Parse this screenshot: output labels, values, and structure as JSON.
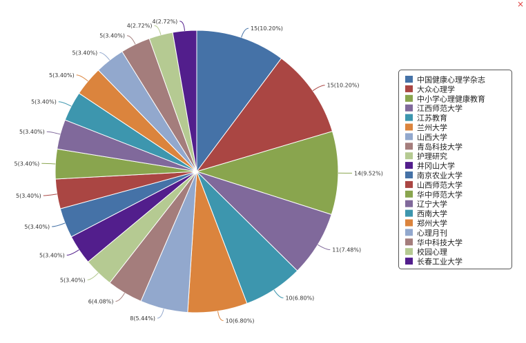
{
  "close_symbol": "×",
  "chart_data": {
    "type": "pie",
    "label_format": "{value}({percent})",
    "legend_position": "right",
    "slices": [
      {
        "name": "中国健康心理学杂志",
        "value": 15,
        "percent": "10.20%",
        "color": "#4572a7"
      },
      {
        "name": "大众心理学",
        "value": 15,
        "percent": "10.20%",
        "color": "#aa4643"
      },
      {
        "name": "中小学心理健康教育",
        "value": 14,
        "percent": "9.52%",
        "color": "#89a54e"
      },
      {
        "name": "江西师范大学",
        "value": 11,
        "percent": "7.48%",
        "color": "#80699b"
      },
      {
        "name": "江苏教育",
        "value": 10,
        "percent": "6.80%",
        "color": "#3d96ae"
      },
      {
        "name": "兰州大学",
        "value": 10,
        "percent": "6.80%",
        "color": "#db843d"
      },
      {
        "name": "山西大学",
        "value": 8,
        "percent": "5.44%",
        "color": "#92a8cd"
      },
      {
        "name": "青岛科技大学",
        "value": 6,
        "percent": "4.08%",
        "color": "#a47d7c"
      },
      {
        "name": "护理研究",
        "value": 5,
        "percent": "3.40%",
        "color": "#b5ca92"
      },
      {
        "name": "井冈山大学",
        "value": 5,
        "percent": "3.40%",
        "color": "#521e8c"
      },
      {
        "name": "南京农业大学",
        "value": 5,
        "percent": "3.40%",
        "color": "#4572a7"
      },
      {
        "name": "山西师范大学",
        "value": 5,
        "percent": "3.40%",
        "color": "#aa4643"
      },
      {
        "name": "华中师范大学",
        "value": 5,
        "percent": "3.40%",
        "color": "#89a54e"
      },
      {
        "name": "辽宁大学",
        "value": 5,
        "percent": "3.40%",
        "color": "#80699b"
      },
      {
        "name": "西南大学",
        "value": 5,
        "percent": "3.40%",
        "color": "#3d96ae"
      },
      {
        "name": "郑州大学",
        "value": 5,
        "percent": "3.40%",
        "color": "#db843d"
      },
      {
        "name": "心理月刊",
        "value": 5,
        "percent": "3.40%",
        "color": "#92a8cd"
      },
      {
        "name": "华中科技大学",
        "value": 5,
        "percent": "3.40%",
        "color": "#a47d7c"
      },
      {
        "name": "校园心理",
        "value": 4,
        "percent": "2.72%",
        "color": "#b5ca92"
      },
      {
        "name": "长春工业大学",
        "value": 4,
        "percent": "2.72%",
        "color": "#521e8c"
      }
    ]
  }
}
